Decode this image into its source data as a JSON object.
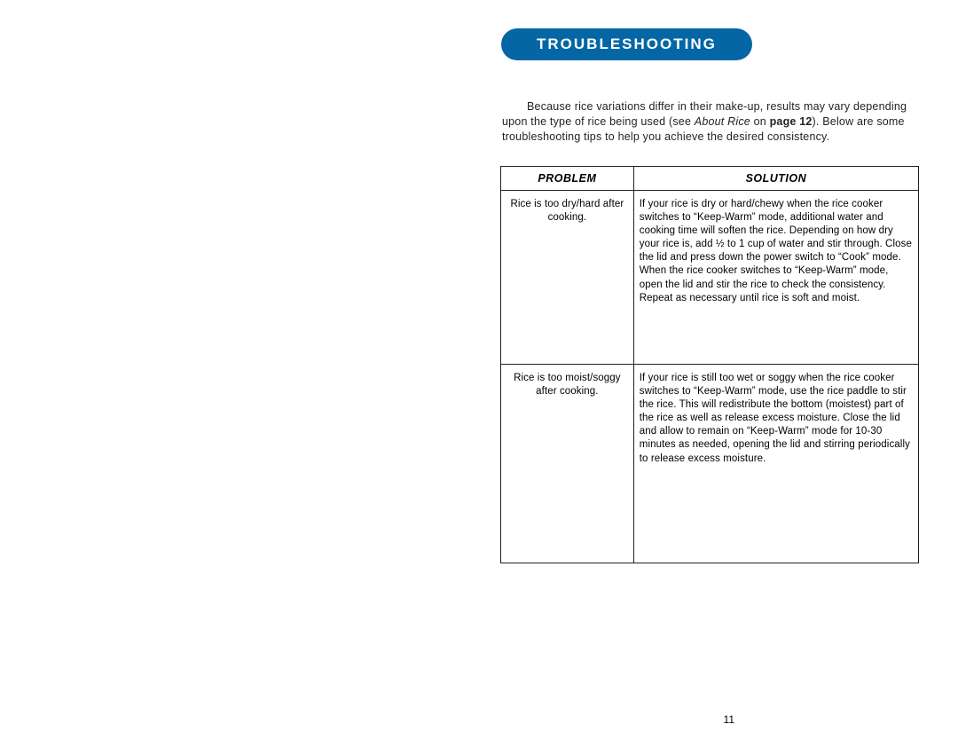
{
  "heading": "TROUBLESHOOTING",
  "intro": {
    "prefix": "Because rice variations differ in their make-up, results may vary depending upon the type of rice being used (see ",
    "italic": "About Rice",
    "mid": " on ",
    "bold": "page 12",
    "suffix": ").  Below are some troubleshooting tips to help you achieve the desired consistency."
  },
  "table": {
    "headers": {
      "problem": "PROBLEM",
      "solution": "SOLUTION"
    },
    "rows": [
      {
        "problem": "Rice is too dry/hard after cooking.",
        "solution": "If your rice is dry or hard/chewy when the rice cooker switches to “Keep-Warm” mode, additional water and cooking time will soften the rice. Depending on how dry your rice is, add ½ to 1 cup of water and stir through. Close the lid and press down the power switch to “Cook” mode. When the rice cooker switches to “Keep-Warm” mode, open the lid and stir the rice to check the consistency.  Repeat as necessary until rice is soft and moist."
      },
      {
        "problem": "Rice is too moist/soggy after cooking.",
        "solution": "If your rice is still too wet or soggy when the rice cooker switches to “Keep-Warm” mode, use the rice paddle to stir the rice.  This will redistribute the bottom (moistest) part of the rice as well as release excess moisture.  Close the lid and allow to remain on “Keep-Warm” mode for 10-30 minutes as needed, opening the lid and stirring periodically to release excess moisture."
      }
    ]
  },
  "page_number": "11",
  "styles": {
    "heading_bg": "#0566a5",
    "heading_fg": "#ffffff",
    "text_color": "#231f20",
    "border_color": "#231f20",
    "page_bg": "#ffffff",
    "heading_fontsize": 17,
    "body_fontsize": 12.5,
    "table_fontsize": 11.5
  }
}
